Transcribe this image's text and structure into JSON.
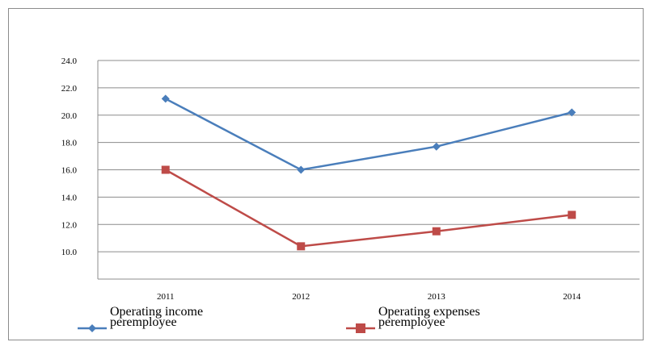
{
  "chart_data": {
    "type": "line",
    "title": "",
    "xlabel": "",
    "ylabel": "",
    "categories": [
      "2011",
      "2012",
      "2013",
      "2014"
    ],
    "y_ticks": [
      "10.0",
      "12.0",
      "14.0",
      "16.0",
      "18.0",
      "20.0",
      "22.0",
      "24.0"
    ],
    "ylim": [
      8,
      24
    ],
    "grid": true,
    "legend_position": "bottom",
    "series": [
      {
        "name": "Operating income peremployee",
        "name_lines": [
          "Operating income",
          "peremployee"
        ],
        "values": [
          21.2,
          16.0,
          17.7,
          20.2
        ],
        "color": "#4a7ebb",
        "marker": "diamond"
      },
      {
        "name": "Operating expenses peremployee",
        "name_lines": [
          "Operating expenses",
          "peremployee"
        ],
        "values": [
          16.0,
          10.4,
          11.5,
          12.7
        ],
        "color": "#be4b48",
        "marker": "square"
      }
    ]
  }
}
